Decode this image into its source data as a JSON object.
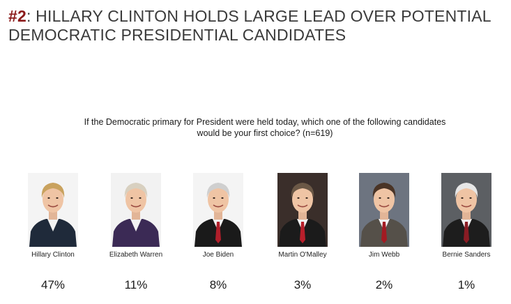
{
  "title": {
    "number": "#2",
    "text": ": HILLARY CLINTON HOLDS LARGE LEAD OVER POTENTIAL DEMOCRATIC PRESIDENTIAL CANDIDATES"
  },
  "question": "If the Democratic primary for President were held today, which one of the following candidates would be your first choice? (n=619)",
  "colors": {
    "title_number": "#8b1a1a",
    "title_text": "#3a3a3a"
  },
  "chart_data": {
    "type": "table",
    "categories": [
      "Hillary Clinton",
      "Elizabeth Warren",
      "Joe Biden",
      "Martin O'Malley",
      "Jim Webb",
      "Bernie Sanders"
    ],
    "values": [
      47,
      11,
      8,
      3,
      2,
      1
    ],
    "labels": [
      "47%",
      "11%",
      "8%",
      "3%",
      "2%",
      "1%"
    ],
    "unit": "%"
  },
  "photos": [
    {
      "hair": "#c9a25e",
      "suit": "#1f2a3a",
      "bg": "#f4f4f4",
      "tie": "none"
    },
    {
      "hair": "#d8d0c0",
      "suit": "#3b2a55",
      "bg": "#f2f2f2",
      "tie": "none"
    },
    {
      "hair": "#cfcfcf",
      "suit": "#1a1a1a",
      "bg": "#f4f4f4",
      "tie": "#b01e2a"
    },
    {
      "hair": "#6b5846",
      "suit": "#1b1b1b",
      "bg": "#3a2e2a",
      "tie": "#b81f2b"
    },
    {
      "hair": "#4a3426",
      "suit": "#555049",
      "bg": "#6d7480",
      "tie": "#a21a22"
    },
    {
      "hair": "#e6e6e6",
      "suit": "#1d1d1d",
      "bg": "#5c5f63",
      "tie": "#8a1c24"
    }
  ]
}
